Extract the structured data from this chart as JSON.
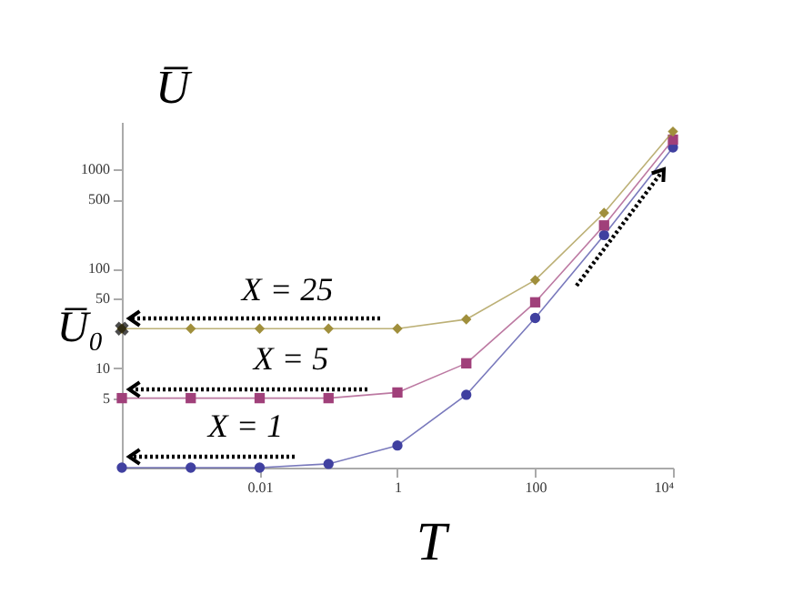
{
  "chart_data": {
    "type": "line",
    "xlabel": "T",
    "ylabel": "U̅",
    "log": "xy",
    "x": [
      0.0001,
      0.001,
      0.01,
      0.1,
      1,
      10,
      100,
      1000,
      10000
    ],
    "xlim": [
      0.0001,
      10000
    ],
    "xticks": [
      0.01,
      1,
      100,
      {
        "value": 10000,
        "label": "10⁴"
      }
    ],
    "ylim": [
      1,
      3000
    ],
    "yticks": [
      5,
      10,
      50,
      100,
      500,
      1000
    ],
    "series": [
      {
        "color": "#4040a0",
        "marker": "circle",
        "values": [
          1,
          1,
          1,
          1.09,
          1.67,
          5.4,
          32,
          218,
          1660
        ]
      },
      {
        "color": "#a0407a",
        "marker": "square",
        "values": [
          5,
          5,
          5,
          5,
          5.7,
          11.2,
          46,
          273,
          1990
        ]
      },
      {
        "color": "#a08f3c",
        "marker": "diamond",
        "values": [
          25,
          25,
          25,
          25,
          25,
          31,
          77,
          365,
          2400
        ]
      }
    ],
    "annotations": [
      "X = 25",
      "X = 5",
      "X = 1",
      {
        "text": "U̅₀",
        "x": 0.0001,
        "y": 25
      }
    ],
    "grid": false
  }
}
